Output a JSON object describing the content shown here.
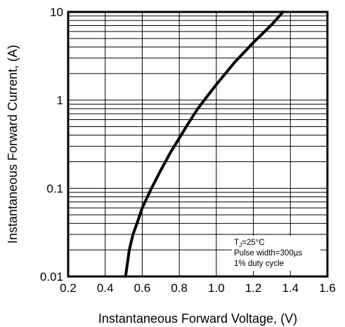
{
  "chart_data": {
    "type": "line",
    "title": "",
    "xlabel": "Instantaneous Forward Voltage, (V)",
    "ylabel": "Instantaneous Forward Current, (A)",
    "xlim": [
      0.2,
      1.6
    ],
    "ylim": [
      0.01,
      10
    ],
    "yscale": "log",
    "grid": true,
    "x_ticks": [
      "0.2",
      "0.4",
      "0.6",
      "0.8",
      "1.0",
      "1.2",
      "1.4",
      "1.6"
    ],
    "y_ticks": [
      "0.01",
      "0.1",
      "1",
      "10"
    ],
    "annotation": {
      "lines": [
        {
          "main": "T",
          "sub": "J",
          "rest": "=25°C"
        },
        {
          "main": "Pulse width=300µs",
          "sub": "",
          "rest": ""
        },
        {
          "main": "1% duty cycle",
          "sub": "",
          "rest": ""
        }
      ]
    },
    "series": [
      {
        "x": [
          0.51,
          0.53,
          0.55,
          0.58,
          0.6,
          0.65,
          0.7,
          0.75,
          0.8,
          0.85,
          0.9,
          0.95,
          1.0,
          1.1,
          1.2,
          1.3,
          1.36
        ],
        "y": [
          0.01,
          0.02,
          0.03,
          0.045,
          0.06,
          0.1,
          0.16,
          0.25,
          0.37,
          0.55,
          0.8,
          1.1,
          1.5,
          2.7,
          4.5,
          7.2,
          10
        ]
      }
    ]
  }
}
